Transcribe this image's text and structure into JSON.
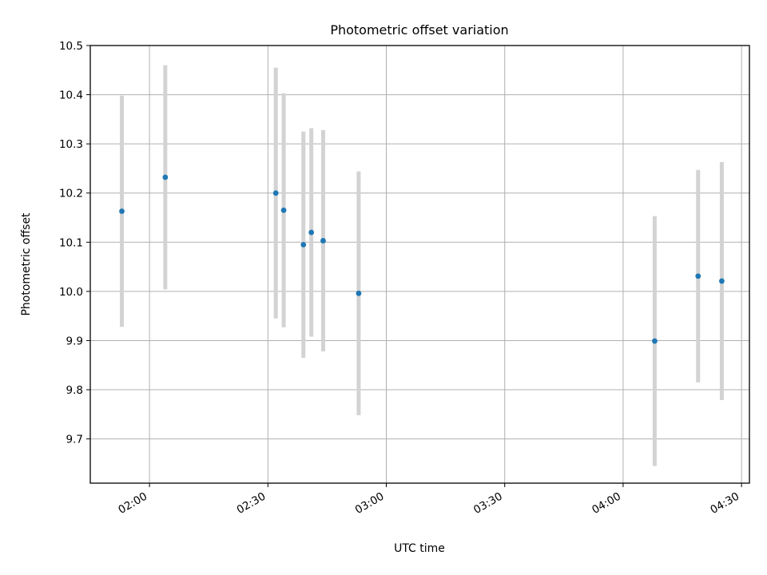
{
  "chart_data": {
    "type": "scatter",
    "title": "Photometric offset variation",
    "xlabel": "UTC time",
    "ylabel": "Photometric offset",
    "x_ticks": [
      "02:00",
      "02:30",
      "03:00",
      "03:30",
      "04:00",
      "04:30"
    ],
    "y_ticks": [
      "9.7",
      "9.8",
      "9.9",
      "10.0",
      "10.1",
      "10.2",
      "10.3",
      "10.4",
      "10.5"
    ],
    "xlim": [
      "01:45",
      "04:32"
    ],
    "ylim": [
      9.61,
      10.5
    ],
    "grid": true,
    "colors": {
      "marker": "#1f77b4",
      "errorbar": "#d3d3d3",
      "grid": "#b0b0b0"
    },
    "points": [
      {
        "x": "01:53",
        "y": 10.163,
        "yerr": 0.235
      },
      {
        "x": "02:04",
        "y": 10.232,
        "yerr": 0.228
      },
      {
        "x": "02:32",
        "y": 10.2,
        "yerr": 0.255
      },
      {
        "x": "02:34",
        "y": 10.165,
        "yerr": 0.238
      },
      {
        "x": "02:39",
        "y": 10.095,
        "yerr": 0.23
      },
      {
        "x": "02:41",
        "y": 10.12,
        "yerr": 0.212
      },
      {
        "x": "02:44",
        "y": 10.103,
        "yerr": 0.225
      },
      {
        "x": "02:53",
        "y": 9.996,
        "yerr": 0.248
      },
      {
        "x": "04:08",
        "y": 9.899,
        "yerr": 0.254
      },
      {
        "x": "04:19",
        "y": 10.031,
        "yerr": 0.216
      },
      {
        "x": "04:25",
        "y": 10.021,
        "yerr": 0.242
      }
    ]
  }
}
